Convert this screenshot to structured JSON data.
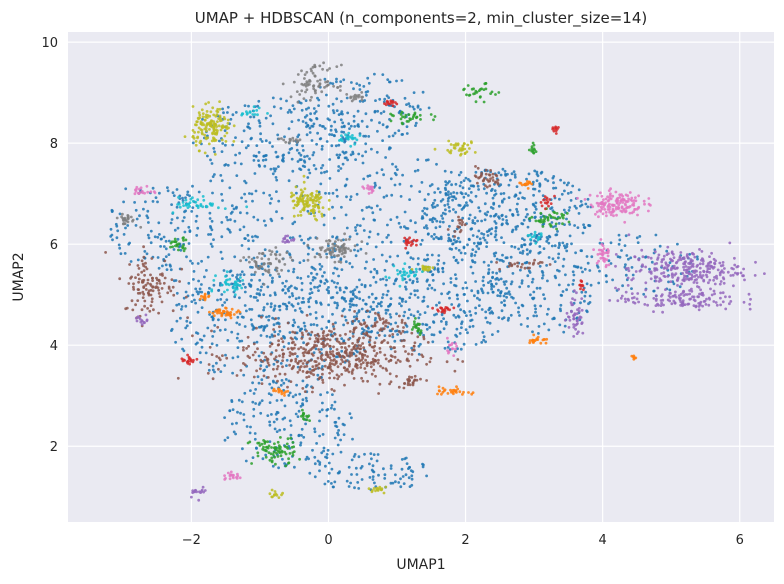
{
  "chart_data": {
    "type": "scatter",
    "title": "UMAP + HDBSCAN (n_components=2, min_cluster_size=14)",
    "xlabel": "UMAP1",
    "ylabel": "UMAP2",
    "xlim": [
      -3.8,
      6.5
    ],
    "ylim": [
      0.5,
      10.2
    ],
    "xticks": [
      -2,
      0,
      2,
      4,
      6
    ],
    "yticks": [
      2,
      4,
      6,
      8,
      10
    ],
    "grid": true,
    "background": "#eaeaf2",
    "noise_color": "#1f77b4",
    "noise": {
      "regions": [
        {
          "cx": 0.2,
          "cy": 6.0,
          "rx": 2.8,
          "ry": 2.0,
          "n": 750
        },
        {
          "cx": -0.8,
          "cy": 4.4,
          "rx": 1.5,
          "ry": 1.2,
          "n": 320
        },
        {
          "cx": 1.5,
          "cy": 4.8,
          "rx": 1.2,
          "ry": 1.0,
          "n": 220
        },
        {
          "cx": 2.6,
          "cy": 6.6,
          "rx": 1.3,
          "ry": 0.9,
          "n": 330
        },
        {
          "cx": 3.2,
          "cy": 5.2,
          "rx": 0.7,
          "ry": 1.0,
          "n": 150
        },
        {
          "cx": -0.7,
          "cy": 8.1,
          "rx": 1.3,
          "ry": 0.8,
          "n": 190
        },
        {
          "cx": 0.5,
          "cy": 8.7,
          "rx": 1.0,
          "ry": 0.7,
          "n": 130
        },
        {
          "cx": -0.6,
          "cy": 2.4,
          "rx": 1.0,
          "ry": 0.9,
          "n": 170
        },
        {
          "cx": 0.6,
          "cy": 1.5,
          "rx": 0.9,
          "ry": 0.4,
          "n": 90
        },
        {
          "cx": -2.6,
          "cy": 6.4,
          "rx": 0.6,
          "ry": 0.9,
          "n": 90
        },
        {
          "cx": 4.6,
          "cy": 5.6,
          "rx": 0.8,
          "ry": 0.7,
          "n": 80
        }
      ]
    },
    "clusters": [
      {
        "color": "#8c564b",
        "cx": 0.0,
        "cy": 3.8,
        "rx": 1.2,
        "ry": 0.55,
        "n": 480
      },
      {
        "color": "#8c564b",
        "cx": 0.8,
        "cy": 4.4,
        "rx": 0.4,
        "ry": 0.25,
        "n": 40
      },
      {
        "color": "#8c564b",
        "cx": -2.6,
        "cy": 5.2,
        "rx": 0.35,
        "ry": 0.55,
        "n": 110
      },
      {
        "color": "#8c564b",
        "cx": 2.3,
        "cy": 7.3,
        "rx": 0.2,
        "ry": 0.2,
        "n": 35
      },
      {
        "color": "#8c564b",
        "cx": 1.2,
        "cy": 3.3,
        "rx": 0.2,
        "ry": 0.1,
        "n": 22
      },
      {
        "color": "#8c564b",
        "cx": 2.8,
        "cy": 5.6,
        "rx": 0.3,
        "ry": 0.1,
        "n": 22
      },
      {
        "color": "#8c564b",
        "cx": 1.9,
        "cy": 6.4,
        "rx": 0.1,
        "ry": 0.15,
        "n": 15
      },
      {
        "color": "#9467bd",
        "cx": 5.2,
        "cy": 5.5,
        "rx": 0.75,
        "ry": 0.35,
        "n": 260
      },
      {
        "color": "#9467bd",
        "cx": 5.1,
        "cy": 4.9,
        "rx": 0.8,
        "ry": 0.2,
        "n": 130
      },
      {
        "color": "#9467bd",
        "cx": 3.6,
        "cy": 4.6,
        "rx": 0.12,
        "ry": 0.4,
        "n": 45
      },
      {
        "color": "#9467bd",
        "cx": -2.7,
        "cy": 4.5,
        "rx": 0.1,
        "ry": 0.08,
        "n": 14
      },
      {
        "color": "#9467bd",
        "cx": -1.9,
        "cy": 1.1,
        "rx": 0.12,
        "ry": 0.1,
        "n": 16
      },
      {
        "color": "#9467bd",
        "cx": -0.6,
        "cy": 6.1,
        "rx": 0.1,
        "ry": 0.08,
        "n": 14
      },
      {
        "color": "#e377c2",
        "cx": 4.2,
        "cy": 6.8,
        "rx": 0.35,
        "ry": 0.22,
        "n": 140
      },
      {
        "color": "#e377c2",
        "cx": 4.0,
        "cy": 5.8,
        "rx": 0.1,
        "ry": 0.3,
        "n": 35
      },
      {
        "color": "#e377c2",
        "cx": -2.7,
        "cy": 7.05,
        "rx": 0.12,
        "ry": 0.1,
        "n": 18
      },
      {
        "color": "#e377c2",
        "cx": -1.4,
        "cy": 1.4,
        "rx": 0.15,
        "ry": 0.08,
        "n": 18
      },
      {
        "color": "#e377c2",
        "cx": 1.8,
        "cy": 4.0,
        "rx": 0.08,
        "ry": 0.12,
        "n": 14
      },
      {
        "color": "#e377c2",
        "cx": 0.6,
        "cy": 7.1,
        "rx": 0.1,
        "ry": 0.1,
        "n": 14
      },
      {
        "color": "#bcbd22",
        "cx": -1.7,
        "cy": 8.3,
        "rx": 0.25,
        "ry": 0.35,
        "n": 140
      },
      {
        "color": "#bcbd22",
        "cx": -0.3,
        "cy": 6.8,
        "rx": 0.25,
        "ry": 0.3,
        "n": 110
      },
      {
        "color": "#bcbd22",
        "cx": 1.9,
        "cy": 7.9,
        "rx": 0.25,
        "ry": 0.12,
        "n": 35
      },
      {
        "color": "#bcbd22",
        "cx": 1.4,
        "cy": 5.55,
        "rx": 0.12,
        "ry": 0.08,
        "n": 18
      },
      {
        "color": "#bcbd22",
        "cx": 0.75,
        "cy": 1.15,
        "rx": 0.15,
        "ry": 0.06,
        "n": 16
      },
      {
        "color": "#bcbd22",
        "cx": -0.8,
        "cy": 1.05,
        "rx": 0.08,
        "ry": 0.06,
        "n": 12
      },
      {
        "color": "#7f7f7f",
        "cx": -0.2,
        "cy": 9.2,
        "rx": 0.3,
        "ry": 0.3,
        "n": 70
      },
      {
        "color": "#7f7f7f",
        "cx": 0.1,
        "cy": 5.9,
        "rx": 0.3,
        "ry": 0.2,
        "n": 70
      },
      {
        "color": "#7f7f7f",
        "cx": -0.9,
        "cy": 5.6,
        "rx": 0.3,
        "ry": 0.3,
        "n": 55
      },
      {
        "color": "#7f7f7f",
        "cx": -2.95,
        "cy": 6.5,
        "rx": 0.15,
        "ry": 0.1,
        "n": 25
      },
      {
        "color": "#7f7f7f",
        "cx": 0.4,
        "cy": 8.9,
        "rx": 0.15,
        "ry": 0.08,
        "n": 15
      },
      {
        "color": "#7f7f7f",
        "cx": -0.6,
        "cy": 8.05,
        "rx": 0.2,
        "ry": 0.05,
        "n": 14
      },
      {
        "color": "#17becf",
        "cx": -1.9,
        "cy": 6.8,
        "rx": 0.3,
        "ry": 0.12,
        "n": 40
      },
      {
        "color": "#17becf",
        "cx": -1.4,
        "cy": 5.2,
        "rx": 0.2,
        "ry": 0.2,
        "n": 35
      },
      {
        "color": "#17becf",
        "cx": 1.1,
        "cy": 5.4,
        "rx": 0.25,
        "ry": 0.15,
        "n": 30
      },
      {
        "color": "#17becf",
        "cx": 0.3,
        "cy": 8.1,
        "rx": 0.15,
        "ry": 0.12,
        "n": 22
      },
      {
        "color": "#17becf",
        "cx": -1.1,
        "cy": 8.6,
        "rx": 0.15,
        "ry": 0.08,
        "n": 16
      },
      {
        "color": "#17becf",
        "cx": 3.0,
        "cy": 6.15,
        "rx": 0.1,
        "ry": 0.1,
        "n": 14
      },
      {
        "color": "#2ca02c",
        "cx": -0.8,
        "cy": 1.9,
        "rx": 0.3,
        "ry": 0.25,
        "n": 75
      },
      {
        "color": "#2ca02c",
        "cx": 3.25,
        "cy": 6.5,
        "rx": 0.25,
        "ry": 0.15,
        "n": 40
      },
      {
        "color": "#2ca02c",
        "cx": 1.2,
        "cy": 8.5,
        "rx": 0.25,
        "ry": 0.1,
        "n": 30
      },
      {
        "color": "#2ca02c",
        "cx": 2.2,
        "cy": 9.0,
        "rx": 0.25,
        "ry": 0.15,
        "n": 28
      },
      {
        "color": "#2ca02c",
        "cx": -2.2,
        "cy": 6.0,
        "rx": 0.15,
        "ry": 0.12,
        "n": 24
      },
      {
        "color": "#2ca02c",
        "cx": 1.3,
        "cy": 4.4,
        "rx": 0.08,
        "ry": 0.15,
        "n": 18
      },
      {
        "color": "#2ca02c",
        "cx": -0.35,
        "cy": 2.6,
        "rx": 0.06,
        "ry": 0.12,
        "n": 14
      },
      {
        "color": "#2ca02c",
        "cx": 3.0,
        "cy": 7.9,
        "rx": 0.05,
        "ry": 0.1,
        "n": 12
      },
      {
        "color": "#d62728",
        "cx": -2.05,
        "cy": 3.7,
        "rx": 0.1,
        "ry": 0.1,
        "n": 18
      },
      {
        "color": "#d62728",
        "cx": 1.7,
        "cy": 4.7,
        "rx": 0.15,
        "ry": 0.05,
        "n": 18
      },
      {
        "color": "#d62728",
        "cx": 1.2,
        "cy": 6.05,
        "rx": 0.1,
        "ry": 0.1,
        "n": 18
      },
      {
        "color": "#d62728",
        "cx": 0.9,
        "cy": 8.8,
        "rx": 0.12,
        "ry": 0.05,
        "n": 14
      },
      {
        "color": "#d62728",
        "cx": 3.2,
        "cy": 6.85,
        "rx": 0.1,
        "ry": 0.1,
        "n": 14
      },
      {
        "color": "#d62728",
        "cx": 3.3,
        "cy": 8.25,
        "rx": 0.04,
        "ry": 0.08,
        "n": 10
      },
      {
        "color": "#d62728",
        "cx": 3.7,
        "cy": 5.2,
        "rx": 0.05,
        "ry": 0.08,
        "n": 10
      },
      {
        "color": "#ff7f0e",
        "cx": -1.5,
        "cy": 4.65,
        "rx": 0.2,
        "ry": 0.08,
        "n": 35
      },
      {
        "color": "#ff7f0e",
        "cx": 1.8,
        "cy": 3.1,
        "rx": 0.25,
        "ry": 0.08,
        "n": 28
      },
      {
        "color": "#ff7f0e",
        "cx": 3.05,
        "cy": 4.1,
        "rx": 0.12,
        "ry": 0.08,
        "n": 20
      },
      {
        "color": "#ff7f0e",
        "cx": 2.9,
        "cy": 7.2,
        "rx": 0.12,
        "ry": 0.06,
        "n": 16
      },
      {
        "color": "#ff7f0e",
        "cx": -0.7,
        "cy": 3.1,
        "rx": 0.1,
        "ry": 0.08,
        "n": 14
      },
      {
        "color": "#ff7f0e",
        "cx": -1.8,
        "cy": 4.95,
        "rx": 0.08,
        "ry": 0.06,
        "n": 12
      },
      {
        "color": "#ff7f0e",
        "cx": 4.45,
        "cy": 3.75,
        "rx": 0.03,
        "ry": 0.05,
        "n": 8
      }
    ]
  }
}
